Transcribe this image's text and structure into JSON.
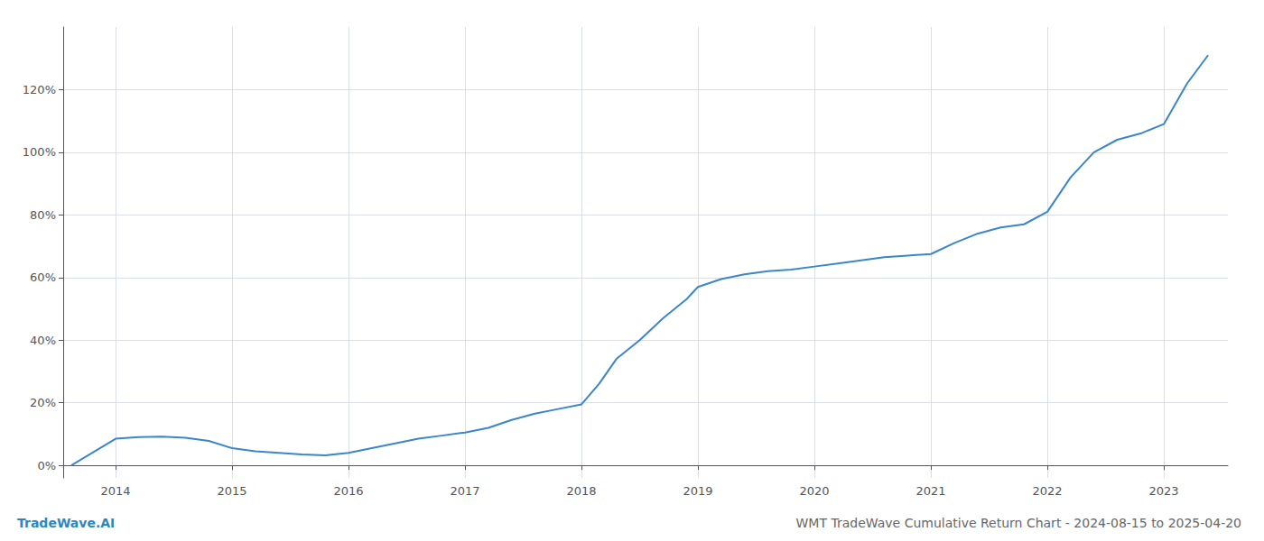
{
  "chart_data": {
    "type": "line",
    "title": "WMT TradeWave Cumulative Return Chart - 2024-08-15 to 2025-04-20",
    "annotations": [
      "TradeWave.AI"
    ],
    "x": [
      2013.62,
      2014.0,
      2014.2,
      2014.4,
      2014.6,
      2014.8,
      2015.0,
      2015.2,
      2015.4,
      2015.6,
      2015.8,
      2016.0,
      2016.2,
      2016.4,
      2016.6,
      2016.8,
      2017.0,
      2017.2,
      2017.4,
      2017.6,
      2017.8,
      2018.0,
      2018.15,
      2018.3,
      2018.5,
      2018.7,
      2018.9,
      2019.0,
      2019.2,
      2019.4,
      2019.6,
      2019.8,
      2020.0,
      2020.2,
      2020.4,
      2020.6,
      2020.8,
      2021.0,
      2021.2,
      2021.4,
      2021.6,
      2021.8,
      2022.0,
      2022.2,
      2022.4,
      2022.6,
      2022.8,
      2023.0,
      2023.2,
      2023.38
    ],
    "values": [
      0.0,
      8.5,
      9.0,
      9.2,
      8.8,
      7.8,
      5.5,
      4.5,
      4.0,
      3.5,
      3.2,
      4.0,
      5.5,
      7.0,
      8.5,
      9.5,
      10.5,
      12.0,
      14.5,
      16.5,
      18.0,
      19.5,
      26.0,
      34.0,
      40.0,
      47.0,
      53.0,
      57.0,
      59.5,
      61.0,
      62.0,
      62.5,
      63.5,
      64.5,
      65.5,
      66.5,
      67.0,
      67.5,
      71.0,
      74.0,
      76.0,
      77.0,
      81.0,
      92.0,
      100.0,
      104.0,
      106.0,
      109.0,
      122.0,
      131.0
    ],
    "color": "#3a86c8",
    "xlim": [
      2013.55,
      2023.55
    ],
    "xticks": [
      2014,
      2015,
      2016,
      2017,
      2018,
      2019,
      2020,
      2021,
      2022,
      2023
    ],
    "ylim": [
      -4,
      140
    ],
    "yticks": [
      {
        "value": 0,
        "label": "0%"
      },
      {
        "value": 20,
        "label": "20%"
      },
      {
        "value": 40,
        "label": "40%"
      },
      {
        "value": 60,
        "label": "60%"
      },
      {
        "value": 80,
        "label": "80%"
      },
      {
        "value": 100,
        "label": "100%"
      },
      {
        "value": 120,
        "label": "120%"
      }
    ],
    "grid": true
  }
}
